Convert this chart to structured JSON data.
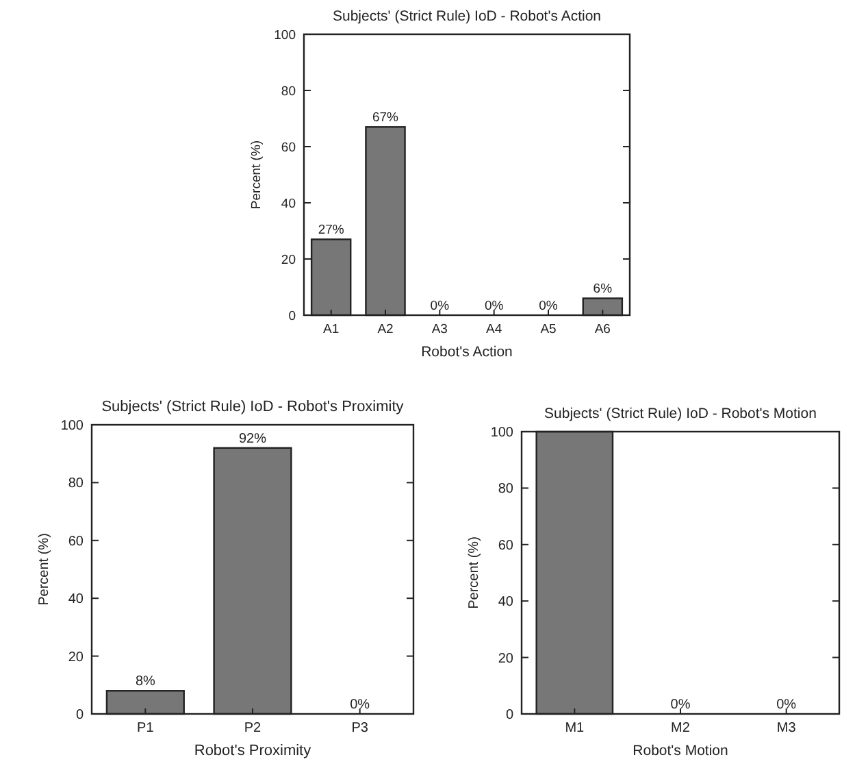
{
  "chart_data": [
    {
      "type": "bar",
      "title": "Subjects' (Strict Rule) IoD - Robot's Action",
      "xlabel": "Robot's Action",
      "ylabel": "Percent (%)",
      "categories": [
        "A1",
        "A2",
        "A3",
        "A4",
        "A5",
        "A6"
      ],
      "values": [
        27,
        67,
        0,
        0,
        0,
        6
      ],
      "value_labels": [
        "27%",
        "67%",
        "0%",
        "0%",
        "0%",
        "6%"
      ],
      "color": "#777777",
      "ylim": [
        0,
        100
      ],
      "yticks": [
        0,
        20,
        40,
        60,
        80,
        100
      ]
    },
    {
      "type": "bar",
      "title": "Subjects' (Strict Rule) IoD - Robot's Proximity",
      "xlabel": "Robot's Proximity",
      "ylabel": "Percent (%)",
      "categories": [
        "P1",
        "P2",
        "P3"
      ],
      "values": [
        8,
        92,
        0
      ],
      "value_labels": [
        "8%",
        "92%",
        "0%"
      ],
      "color": "#777777",
      "ylim": [
        0,
        100
      ],
      "yticks": [
        0,
        20,
        40,
        60,
        80,
        100
      ]
    },
    {
      "type": "bar",
      "title": "Subjects' (Strict Rule) IoD - Robot's Motion",
      "xlabel": "Robot's Motion",
      "ylabel": "Percent (%)",
      "categories": [
        "M1",
        "M2",
        "M3"
      ],
      "values": [
        100,
        0,
        0
      ],
      "value_labels": [
        null,
        "0%",
        "0%"
      ],
      "color": "#777777",
      "ylim": [
        0,
        100
      ],
      "yticks": [
        0,
        20,
        40,
        60,
        80,
        100
      ]
    }
  ]
}
